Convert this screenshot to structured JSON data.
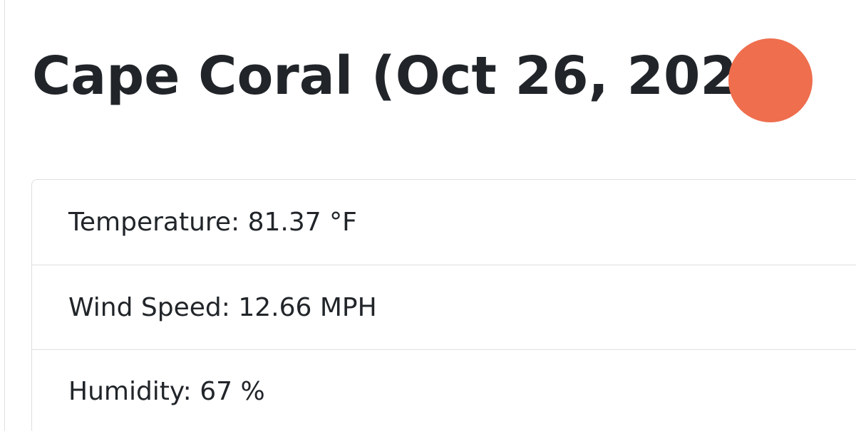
{
  "header": {
    "title": "Cape Coral (Oct 26, 2022)",
    "weather_icon": {
      "name": "weather-condition-icon",
      "color": "#ee6e4e"
    }
  },
  "weather": {
    "items": [
      {
        "label": "Temperature:",
        "value": "81.37 °F"
      },
      {
        "label": "Wind Speed:",
        "value": "12.66 MPH"
      },
      {
        "label": "Humidity:",
        "value": "67 %"
      }
    ]
  }
}
